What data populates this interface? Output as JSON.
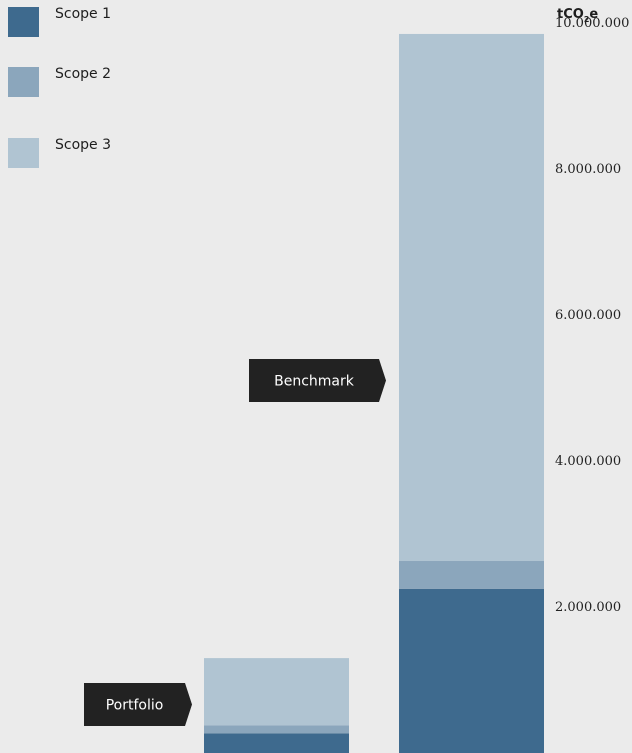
{
  "chart_data": {
    "type": "bar",
    "stacked": true,
    "categories": [
      "Portfolio",
      "Benchmark"
    ],
    "series": [
      {
        "name": "Scope 1",
        "color": "#3e6a8e",
        "values": [
          270000,
          2250000
        ]
      },
      {
        "name": "Scope 2",
        "color": "#8ba6bc",
        "values": [
          110000,
          380000
        ]
      },
      {
        "name": "Scope 3",
        "color": "#b0c4d2",
        "values": [
          920000,
          7220000
        ]
      }
    ],
    "unit": {
      "main": "tCO",
      "sub": "2",
      "tail": "e"
    },
    "y_axis": {
      "min": 0,
      "max": 10000000,
      "ticks": [
        2000000,
        4000000,
        6000000,
        8000000,
        10000000
      ],
      "tick_labels": [
        "2.000.000",
        "4.000.000",
        "6.000.000",
        "8.000.000",
        "10.000.000"
      ],
      "side": "right"
    },
    "callouts": [
      {
        "label": "Portfolio",
        "color": "#222222"
      },
      {
        "label": "Benchmark",
        "color": "#222222"
      }
    ],
    "grid": false,
    "legend_position": "top-left"
  }
}
